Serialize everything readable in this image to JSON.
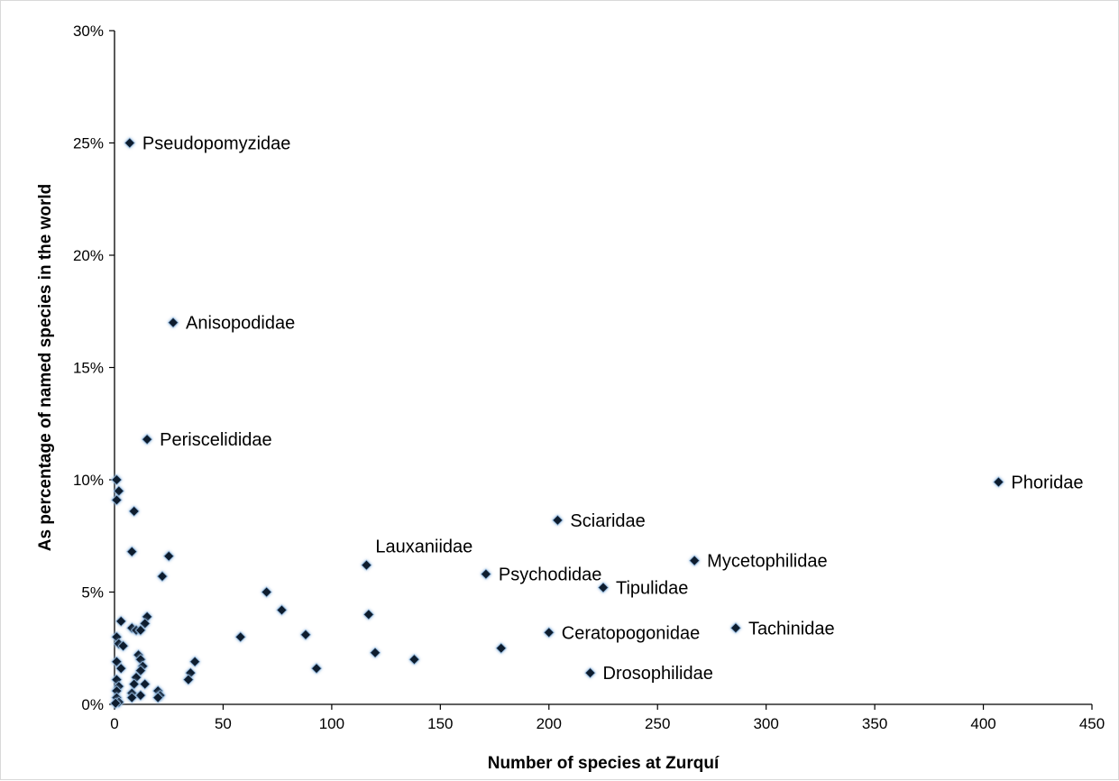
{
  "chart_data": {
    "type": "scatter",
    "title": "",
    "xlabel": "Number of species at Zurquí",
    "ylabel": "As percentage  of named species in the world",
    "xlim": [
      0,
      450
    ],
    "ylim": [
      0,
      30
    ],
    "x_ticks": [
      "0",
      "50",
      "100",
      "150",
      "200",
      "250",
      "300",
      "350",
      "400",
      "450"
    ],
    "y_ticks": [
      "0%",
      "5%",
      "10%",
      "15%",
      "20%",
      "25%",
      "30%"
    ],
    "grid": false,
    "legend": "none",
    "marker_color": "#0d1b2e",
    "marker_glow": "#8fb4d9",
    "labeled_points": [
      {
        "label": "Pseudopomyzidae",
        "x": 7,
        "y": 25.0
      },
      {
        "label": "Anisopodidae",
        "x": 27,
        "y": 17.0
      },
      {
        "label": "Periscelididae",
        "x": 15,
        "y": 11.8
      },
      {
        "label": "Phoridae",
        "x": 407,
        "y": 9.9
      },
      {
        "label": "Sciaridae",
        "x": 204,
        "y": 8.2
      },
      {
        "label": "Lauxaniidae",
        "x": 116,
        "y": 6.2
      },
      {
        "label": "Psychodidae",
        "x": 171,
        "y": 5.8
      },
      {
        "label": "Mycetophilidae",
        "x": 267,
        "y": 6.4
      },
      {
        "label": "Tipulidae",
        "x": 225,
        "y": 5.2
      },
      {
        "label": "Ceratopogonidae",
        "x": 200,
        "y": 3.2
      },
      {
        "label": "Tachinidae",
        "x": 286,
        "y": 3.4
      },
      {
        "label": "Drosophilidae",
        "x": 219,
        "y": 1.4
      }
    ],
    "points": [
      {
        "x": 1,
        "y": 10.0
      },
      {
        "x": 2,
        "y": 9.5
      },
      {
        "x": 1,
        "y": 9.1
      },
      {
        "x": 9,
        "y": 8.6
      },
      {
        "x": 8,
        "y": 6.8
      },
      {
        "x": 25,
        "y": 6.6
      },
      {
        "x": 22,
        "y": 5.7
      },
      {
        "x": 70,
        "y": 5.0
      },
      {
        "x": 77,
        "y": 4.2
      },
      {
        "x": 117,
        "y": 4.0
      },
      {
        "x": 3,
        "y": 3.7
      },
      {
        "x": 15,
        "y": 3.9
      },
      {
        "x": 14,
        "y": 3.6
      },
      {
        "x": 8,
        "y": 3.4
      },
      {
        "x": 10,
        "y": 3.3
      },
      {
        "x": 12,
        "y": 3.3
      },
      {
        "x": 58,
        "y": 3.0
      },
      {
        "x": 88,
        "y": 3.1
      },
      {
        "x": 1,
        "y": 3.0
      },
      {
        "x": 2,
        "y": 2.7
      },
      {
        "x": 4,
        "y": 2.6
      },
      {
        "x": 178,
        "y": 2.5
      },
      {
        "x": 120,
        "y": 2.3
      },
      {
        "x": 11,
        "y": 2.2
      },
      {
        "x": 12,
        "y": 2.0
      },
      {
        "x": 138,
        "y": 2.0
      },
      {
        "x": 1,
        "y": 1.9
      },
      {
        "x": 37,
        "y": 1.9
      },
      {
        "x": 13,
        "y": 1.7
      },
      {
        "x": 3,
        "y": 1.6
      },
      {
        "x": 93,
        "y": 1.6
      },
      {
        "x": 12,
        "y": 1.5
      },
      {
        "x": 35,
        "y": 1.4
      },
      {
        "x": 10,
        "y": 1.2
      },
      {
        "x": 34,
        "y": 1.1
      },
      {
        "x": 1,
        "y": 1.1
      },
      {
        "x": 9,
        "y": 0.9
      },
      {
        "x": 14,
        "y": 0.9
      },
      {
        "x": 2,
        "y": 0.8
      },
      {
        "x": 1,
        "y": 0.6
      },
      {
        "x": 20,
        "y": 0.6
      },
      {
        "x": 8,
        "y": 0.5
      },
      {
        "x": 21,
        "y": 0.4
      },
      {
        "x": 12,
        "y": 0.4
      },
      {
        "x": 8,
        "y": 0.3
      },
      {
        "x": 20,
        "y": 0.3
      },
      {
        "x": 1,
        "y": 0.3
      },
      {
        "x": 2,
        "y": 0.1
      },
      {
        "x": 0.5,
        "y": 0.05
      }
    ]
  }
}
